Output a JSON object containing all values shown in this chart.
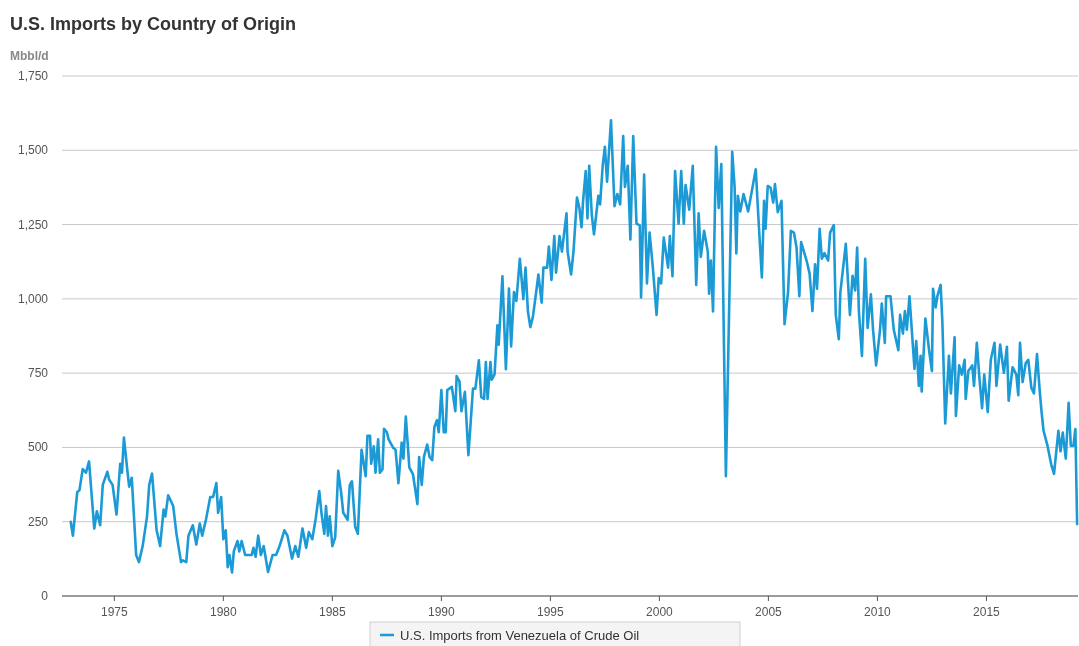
{
  "chart_data": {
    "type": "line",
    "title": "U.S. Imports by Country of Origin",
    "ylabel": "Mbbl/d",
    "xlim": [
      1972.6,
      2019.2
    ],
    "xticks": [
      1975,
      1980,
      1985,
      1990,
      1995,
      2000,
      2005,
      2010,
      2015
    ],
    "ylim": [
      0,
      1750
    ],
    "yticks": [
      0,
      250,
      500,
      750,
      {
        "value": 1000,
        "label": "1,000"
      },
      {
        "value": 1250,
        "label": "1,250"
      },
      {
        "value": 1500,
        "label": "1,500"
      },
      {
        "value": 1750,
        "label": "1,750"
      }
    ],
    "grid": "y",
    "legend": "bottom",
    "marker": "none",
    "line_style": "solid",
    "series": [
      {
        "name": "U.S. Imports from Venezuela of Crude Oil",
        "color": "#1b9ad6",
        "x": [
          1973.0,
          1973.1,
          1973.3,
          1973.4,
          1973.55,
          1973.7,
          1973.84,
          1974.08,
          1974.2,
          1974.35,
          1974.47,
          1974.68,
          1974.76,
          1974.92,
          1975.1,
          1975.27,
          1975.35,
          1975.44,
          1975.6,
          1975.68,
          1975.8,
          1976.0,
          1976.13,
          1976.3,
          1976.5,
          1976.6,
          1976.73,
          1976.94,
          1977.1,
          1977.26,
          1977.34,
          1977.47,
          1977.7,
          1977.85,
          1978.06,
          1978.14,
          1978.3,
          1978.4,
          1978.6,
          1978.76,
          1978.92,
          1979.03,
          1979.2,
          1979.4,
          1979.53,
          1979.68,
          1979.76,
          1979.9,
          1980.0,
          1980.11,
          1980.2,
          1980.28,
          1980.4,
          1980.48,
          1980.65,
          1980.73,
          1980.84,
          1981.0,
          1981.3,
          1981.38,
          1981.48,
          1981.6,
          1981.72,
          1981.85,
          1982.05,
          1982.26,
          1982.42,
          1982.58,
          1982.8,
          1982.94,
          1983.15,
          1983.3,
          1983.44,
          1983.63,
          1983.8,
          1983.92,
          1984.08,
          1984.24,
          1984.4,
          1984.5,
          1984.63,
          1984.71,
          1984.8,
          1984.88,
          1985.0,
          1985.13,
          1985.27,
          1985.4,
          1985.5,
          1985.7,
          1985.8,
          1985.9,
          1986.05,
          1986.17,
          1986.34,
          1986.53,
          1986.61,
          1986.73,
          1986.78,
          1986.9,
          1986.98,
          1987.1,
          1987.18,
          1987.3,
          1987.37,
          1987.5,
          1987.58,
          1987.8,
          1987.9,
          1988.03,
          1988.18,
          1988.26,
          1988.37,
          1988.53,
          1988.7,
          1988.9,
          1988.98,
          1989.1,
          1989.2,
          1989.35,
          1989.46,
          1989.58,
          1989.68,
          1989.8,
          1989.88,
          1990.0,
          1990.11,
          1990.2,
          1990.27,
          1990.48,
          1990.64,
          1990.7,
          1990.83,
          1990.92,
          1991.08,
          1991.24,
          1991.45,
          1991.56,
          1991.72,
          1991.83,
          1991.96,
          1992.04,
          1992.12,
          1992.25,
          1992.31,
          1992.44,
          1992.57,
          1992.63,
          1992.8,
          1992.96,
          1993.1,
          1993.2,
          1993.33,
          1993.44,
          1993.6,
          1993.76,
          1993.86,
          1993.97,
          1994.08,
          1994.2,
          1994.37,
          1994.45,
          1994.6,
          1994.68,
          1994.85,
          1994.93,
          1995.05,
          1995.18,
          1995.26,
          1995.42,
          1995.53,
          1995.74,
          1995.79,
          1995.95,
          1996.06,
          1996.22,
          1996.33,
          1996.43,
          1996.5,
          1996.62,
          1996.7,
          1996.78,
          1996.9,
          1997.0,
          1997.2,
          1997.28,
          1997.4,
          1997.5,
          1997.6,
          1997.78,
          1997.94,
          1998.07,
          1998.2,
          1998.34,
          1998.42,
          1998.55,
          1998.67,
          1998.8,
          1998.95,
          1999.1,
          1999.16,
          1999.3,
          1999.43,
          1999.55,
          1999.7,
          1999.87,
          1999.97,
          2000.08,
          2000.2,
          2000.4,
          2000.48,
          2000.6,
          2000.72,
          2000.88,
          2001.0,
          2001.12,
          2001.2,
          2001.37,
          2001.53,
          2001.69,
          2001.8,
          2001.9,
          2002.05,
          2002.22,
          2002.28,
          2002.36,
          2002.46,
          2002.6,
          2002.72,
          2002.84,
          2003.05,
          2003.34,
          2003.45,
          2003.53,
          2003.6,
          2003.71,
          2003.86,
          2004.07,
          2004.26,
          2004.42,
          2004.57,
          2004.7,
          2004.8,
          2004.87,
          2004.97,
          2005.1,
          2005.22,
          2005.3,
          2005.43,
          2005.6,
          2005.74,
          2005.9,
          2006.03,
          2006.17,
          2006.29,
          2006.42,
          2006.5,
          2006.75,
          2006.89,
          2007.02,
          2007.14,
          2007.23,
          2007.35,
          2007.45,
          2007.57,
          2007.74,
          2007.83,
          2008.0,
          2008.09,
          2008.23,
          2008.3,
          2008.55,
          2008.74,
          2008.86,
          2008.98,
          2009.07,
          2009.15,
          2009.29,
          2009.44,
          2009.55,
          2009.7,
          2009.8,
          2009.94,
          2010.12,
          2010.2,
          2010.34,
          2010.4,
          2010.6,
          2010.75,
          2010.96,
          2011.04,
          2011.17,
          2011.26,
          2011.35,
          2011.47,
          2011.7,
          2011.78,
          2011.9,
          2011.98,
          2012.03,
          2012.2,
          2012.37,
          2012.5,
          2012.55,
          2012.67,
          2012.75,
          2012.9,
          2012.98,
          2013.11,
          2013.28,
          2013.37,
          2013.54,
          2013.6,
          2013.75,
          2013.87,
          2014.0,
          2014.05,
          2014.17,
          2014.35,
          2014.43,
          2014.56,
          2014.68,
          2014.8,
          2014.9,
          2015.06,
          2015.2,
          2015.37,
          2015.46,
          2015.63,
          2015.8,
          2015.94,
          2016.02,
          2016.2,
          2016.37,
          2016.46,
          2016.54,
          2016.66,
          2016.8,
          2016.92,
          2017.06,
          2017.18,
          2017.32,
          2017.44,
          2017.53,
          2017.62,
          2017.8,
          2017.97,
          2018.1,
          2018.3,
          2018.4,
          2018.5,
          2018.64,
          2018.77,
          2018.87,
          2018.99,
          2019.08,
          2019.16
        ],
        "values": [
          250,
          203,
          350,
          356,
          427,
          415,
          453,
          227,
          285,
          238,
          374,
          418,
          392,
          374,
          274,
          445,
          415,
          533,
          421,
          368,
          398,
          138,
          114,
          168,
          268,
          374,
          412,
          221,
          168,
          291,
          268,
          339,
          303,
          209,
          114,
          120,
          114,
          203,
          238,
          173,
          244,
          203,
          256,
          333,
          333,
          380,
          280,
          333,
          191,
          221,
          97,
          138,
          79,
          150,
          185,
          150,
          185,
          138,
          138,
          162,
          132,
          203,
          138,
          168,
          81,
          138,
          138,
          168,
          221,
          203,
          126,
          168,
          132,
          227,
          162,
          215,
          191,
          262,
          353,
          280,
          209,
          303,
          203,
          268,
          168,
          197,
          421,
          350,
          280,
          256,
          374,
          386,
          232,
          209,
          492,
          403,
          539,
          539,
          445,
          504,
          415,
          527,
          415,
          427,
          563,
          551,
          527,
          498,
          492,
          380,
          516,
          462,
          604,
          433,
          409,
          309,
          468,
          374,
          468,
          510,
          468,
          457,
          569,
          592,
          551,
          693,
          551,
          551,
          693,
          704,
          622,
          740,
          722,
          622,
          687,
          474,
          698,
          698,
          793,
          669,
          663,
          787,
          663,
          787,
          728,
          746,
          911,
          846,
          1076,
          763,
          1035,
          840,
          1023,
          993,
          1135,
          999,
          1105,
          958,
          905,
          940,
          1035,
          1082,
          987,
          1105,
          1105,
          1176,
          1064,
          1211,
          1088,
          1211,
          1159,
          1288,
          1159,
          1082,
          1159,
          1341,
          1306,
          1241,
          1330,
          1430,
          1271,
          1448,
          1282,
          1217,
          1347,
          1318,
          1448,
          1512,
          1394,
          1601,
          1312,
          1353,
          1318,
          1548,
          1377,
          1448,
          1200,
          1548,
          1253,
          1247,
          1005,
          1418,
          1052,
          1223,
          1105,
          946,
          1070,
          1052,
          1206,
          1105,
          1211,
          1076,
          1430,
          1253,
          1430,
          1253,
          1383,
          1300,
          1448,
          1047,
          1288,
          1141,
          1229,
          1159,
          1017,
          1129,
          958,
          1512,
          1306,
          1454,
          403,
          1495,
          1377,
          1153,
          1347,
          1294,
          1353,
          1294,
          1371,
          1436,
          1236,
          1072,
          1330,
          1236,
          1380,
          1374,
          1324,
          1386,
          1292,
          1330,
          915,
          1022,
          1229,
          1223,
          1173,
          1009,
          1191,
          1129,
          1085,
          959,
          1116,
          1034,
          1236,
          1135,
          1154,
          1129,
          1223,
          1248,
          946,
          864,
          1022,
          1185,
          946,
          1078,
          1028,
          1173,
          959,
          808,
          1135,
          902,
          1015,
          896,
          776,
          896,
          984,
          852,
          1009,
          1009,
          896,
          827,
          946,
          883,
          959,
          896,
          1009,
          764,
          858,
          707,
          808,
          688,
          934,
          827,
          757,
          1034,
          971,
          1009,
          1047,
          921,
          581,
          808,
          682,
          871,
          606,
          776,
          745,
          795,
          663,
          757,
          776,
          707,
          852,
          732,
          632,
          745,
          619,
          795,
          852,
          707,
          846,
          751,
          839,
          657,
          770,
          745,
          676,
          852,
          720,
          783,
          795,
          701,
          682,
          814,
          694,
          619,
          556,
          506,
          443,
          411,
          556,
          487,
          550,
          462,
          650,
          506,
          506,
          562,
          242
        ]
      }
    ]
  }
}
